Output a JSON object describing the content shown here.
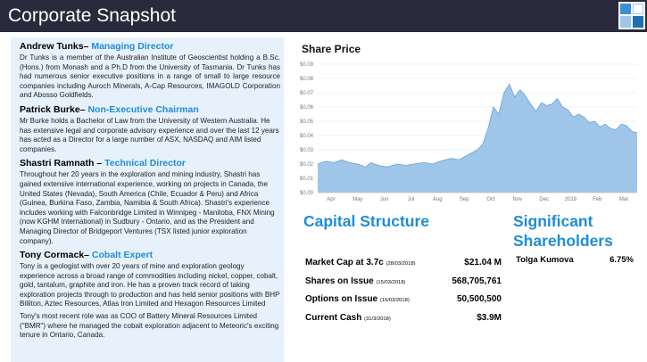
{
  "header": {
    "title": "Corporate Snapshot"
  },
  "bios": [
    {
      "name": "Andrew Tunks– ",
      "role": "Managing Director",
      "paragraphs": [
        "Dr Tunks is a member of the Australian Institute of Geoscientist holding a B.Sc. (Hons.) from Monash and a Ph.D from the University of Tasmania. Dr Tunks has had numerous senior executive positions in a range of small to large resource companies including Auroch Minerals, A-Cap Resources, IMAGOLD Corporation and Abosso Goldfields."
      ]
    },
    {
      "name": "Patrick Burke– ",
      "role": "Non-Executive Chairman",
      "paragraphs": [
        "Mr Burke holds a Bachelor of Law from the University of Western Australia. He has extensive legal and corporate advisory experience and over the last 12 years has acted as a Director for a  large number of ASX, NASDAQ and AIM listed companies."
      ]
    },
    {
      "name": "Shastri Ramnath – ",
      "role": "Technical Director",
      "paragraphs": [
        "Throughout her 20 years in the exploration and mining industry, Shastri has gained extensive international experience, working on projects in Canada, the United States (Nevada), South America (Chile, Ecuador & Peru) and Africa (Guinea, Burkina Faso, Zambia, Namibia & South Africa). Shastri's experience includes working with Falconbridge Limited in Winnipeg - Manitoba, FNX Mining (now KGHM International) in Sudbury - Ontario, and as the President and Managing Director of Bridgeport Ventures (TSX listed junior exploration company)."
      ]
    },
    {
      "name": "Tony Cormack– ",
      "role": "Cobalt Expert",
      "paragraphs": [
        "Tony is a geologist with over 20 years of mine and exploration geology experience across a broad range of commodities including  nickel, copper, cobalt, gold,  tantalum, graphite and iron. He has a proven  track record  of taking exploration projects through to production and has held senior  positions with  BHP Billiton, Aztec Resources, Atlas Iron Limited and Hexagon Resources Limited",
        "Tony's most recent role was as COO of Battery Mineral Resources Limited  (\"BMR\") where he managed  the cobalt exploration adjacent to Meteoric's exciting tenure in Ontario, Canada."
      ]
    }
  ],
  "share_price": {
    "title": "Share Price"
  },
  "chart_data": {
    "type": "area",
    "title": "Share Price",
    "y_ticks": [
      "$0.00",
      "$0.01",
      "$0.02",
      "$0.03",
      "$0.04",
      "$0.05",
      "$0.06",
      "$0.07",
      "$0.08",
      "$0.09"
    ],
    "ylim": [
      0,
      0.09
    ],
    "x_ticks": [
      "Apr",
      "May",
      "Jun",
      "Jul",
      "Aug",
      "Sep",
      "Oct",
      "Nov",
      "Dec",
      "2018",
      "Feb",
      "Mar"
    ],
    "xlim": [
      0,
      12
    ],
    "grid": true,
    "color": "#9fc5e8",
    "line_color": "#6aa3d4",
    "x": [
      0,
      0.3,
      0.6,
      0.9,
      1.2,
      1.5,
      1.8,
      2.0,
      2.3,
      2.6,
      3.0,
      3.3,
      3.6,
      4.0,
      4.3,
      4.6,
      5.0,
      5.3,
      5.6,
      6.0,
      6.2,
      6.4,
      6.6,
      6.8,
      7.0,
      7.2,
      7.4,
      7.6,
      7.8,
      8.0,
      8.2,
      8.4,
      8.6,
      8.8,
      9.0,
      9.2,
      9.4,
      9.6,
      9.8,
      10.0,
      10.2,
      10.4,
      10.6,
      10.8,
      11.0,
      11.2,
      11.4,
      11.6,
      11.8,
      12.0
    ],
    "values": [
      0.02,
      0.022,
      0.021,
      0.023,
      0.021,
      0.02,
      0.018,
      0.021,
      0.019,
      0.018,
      0.02,
      0.019,
      0.02,
      0.021,
      0.02,
      0.022,
      0.024,
      0.023,
      0.026,
      0.03,
      0.034,
      0.045,
      0.06,
      0.055,
      0.07,
      0.076,
      0.067,
      0.072,
      0.068,
      0.062,
      0.057,
      0.063,
      0.061,
      0.062,
      0.066,
      0.06,
      0.058,
      0.053,
      0.055,
      0.053,
      0.049,
      0.05,
      0.046,
      0.048,
      0.045,
      0.044,
      0.048,
      0.047,
      0.043,
      0.042
    ]
  },
  "capital_structure": {
    "title": "Capital Structure",
    "rows": [
      {
        "label": "Market Cap at 3.7c",
        "note": "(28/03/2018)",
        "value": "$21.04 M"
      },
      {
        "label": "Shares on Issue",
        "note": "(15/03/2018)",
        "value": "568,705,761"
      },
      {
        "label": "Options on Issue",
        "note": "(15/03/2018)",
        "value": "50,500,500"
      },
      {
        "label": "Current Cash",
        "note": "(31/3/2018)",
        "value": "$3.9M"
      }
    ]
  },
  "shareholders": {
    "title": "Significant Shareholders",
    "rows": [
      {
        "name": "Tolga Kumova",
        "value": "6.75%"
      }
    ]
  }
}
